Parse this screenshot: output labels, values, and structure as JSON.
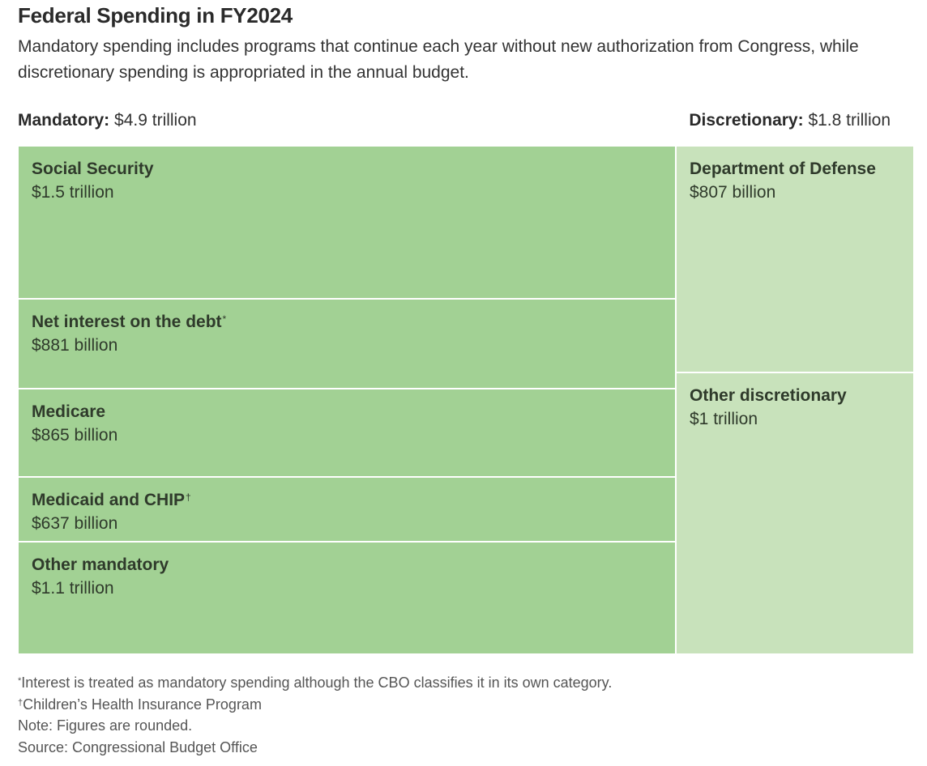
{
  "title": "Federal Spending in FY2024",
  "subtitle": "Mandatory spending includes programs that continue each year without new authorization from Congress, while discretionary spending is appropriated in the annual budget.",
  "groups": {
    "mandatory": {
      "label": "Mandatory:",
      "total": "$4.9 trillion"
    },
    "discretionary": {
      "label": "Discretionary:",
      "total": "$1.8 trillion"
    }
  },
  "colors": {
    "mandatory": "#a2d194",
    "discretionary": "#c8e2bb",
    "divider": "#ffffff"
  },
  "chart_data": {
    "type": "treemap",
    "title": "Federal Spending in FY2024",
    "units": "USD",
    "groups": [
      {
        "name": "Mandatory",
        "total_display": "$4.9 trillion",
        "total_billion": 4900,
        "items": [
          {
            "name": "Social Security",
            "marker": "",
            "display": "$1.5 trillion",
            "value_billion": 1500
          },
          {
            "name": "Net interest on the debt",
            "marker": "*",
            "display": "$881 billion",
            "value_billion": 881
          },
          {
            "name": "Medicare",
            "marker": "",
            "display": "$865 billion",
            "value_billion": 865
          },
          {
            "name": "Medicaid and CHIP",
            "marker": "†",
            "display": "$637 billion",
            "value_billion": 637
          },
          {
            "name": "Other mandatory",
            "marker": "",
            "display": "$1.1 trillion",
            "value_billion": 1100
          }
        ]
      },
      {
        "name": "Discretionary",
        "total_display": "$1.8 trillion",
        "total_billion": 1800,
        "items": [
          {
            "name": "Department of Defense",
            "marker": "",
            "display": "$807 billion",
            "value_billion": 807
          },
          {
            "name": "Other discretionary",
            "marker": "",
            "display": "$1 trillion",
            "value_billion": 1000
          }
        ]
      }
    ]
  },
  "footnotes": {
    "interest": {
      "marker": "*",
      "text": "Interest is treated as mandatory spending although the CBO classifies it in its own category."
    },
    "chip": {
      "marker": "†",
      "text": "Children’s Health Insurance Program"
    },
    "note": "Note: Figures are rounded.",
    "source": "Source: Congressional Budget Office"
  }
}
